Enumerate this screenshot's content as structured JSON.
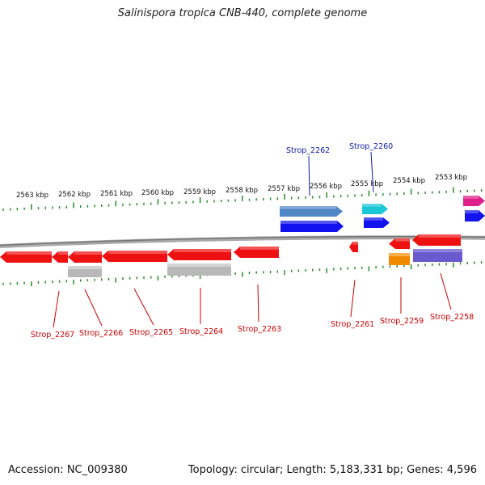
{
  "title": "Salinispora tropica CNB-440, complete genome",
  "footer": {
    "accession": "Accession: NC_009380",
    "summary": "Topology: circular; Length: 5,183,331 bp; Genes: 4,596"
  },
  "colors": {
    "backbone": "#888888",
    "tick": "#2a8a2a",
    "kbp_label": "#111111",
    "forward_label": "#0b1aa8",
    "reverse_label": "#cc0000",
    "cds_red": "#ee1111",
    "cds_blue": "#1212ee",
    "cds_steel": "#4f86c6",
    "cds_cyan": "#19c7d6",
    "cds_magenta": "#e0208a",
    "gray_track": "#b8b8b8",
    "orange_track": "#f08b00",
    "purple_track": "#6a5acd"
  },
  "map": {
    "kbp_labels": [
      "2563 kbp",
      "2562 kbp",
      "2561 kbp",
      "2560 kbp",
      "2559 kbp",
      "2558 kbp",
      "2557 kbp",
      "2556 kbp",
      "2555 kbp",
      "2554 kbp",
      "2553 kbp"
    ],
    "forward_gene_labels": [
      "Strop_2262",
      "Strop_2260"
    ],
    "reverse_gene_labels": [
      "Strop_2267",
      "Strop_2266",
      "Strop_2265",
      "Strop_2264",
      "Strop_2263",
      "Strop_2261",
      "Strop_2259",
      "Strop_2258"
    ]
  }
}
